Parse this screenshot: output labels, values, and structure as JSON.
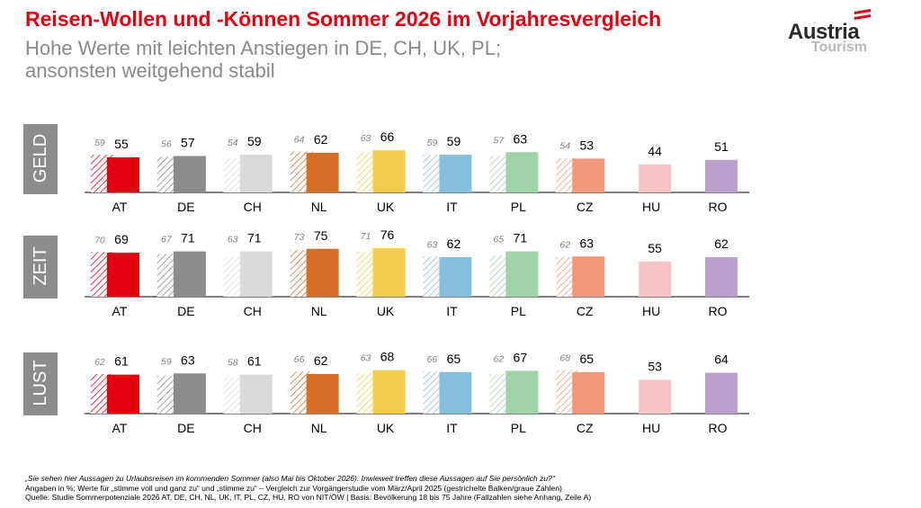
{
  "header": {
    "title": "Reisen-Wollen und -Können Sommer 2026 im Vorjahresvergleich",
    "subtitle_line1": "Hohe Werte mit leichten Anstiegen in DE, CH, UK, PL;",
    "subtitle_line2": "ansonsten weitgehend stabil"
  },
  "logo": {
    "main": "Austria",
    "sub": "Tourism"
  },
  "footer": {
    "question": "„Sie sehen hier Aussagen zu Urlaubsreisen im kommenden Sommer (also Mai bis Oktober 2026). Inwieweit treffen diese Aussagen auf Sie persönlich zu?“",
    "note": "Angaben in %; Werte für „stimme voll und ganz zu“ und „stimme zu“ – Vergleich zur Vorgängerstudie vom März/April 2025 (gestrichelte Balken/graue Zahlen)",
    "source": "Quelle: Studie Sommerpotenziale 2026 AT, DE, CH, NL, UK, IT, PL, CZ, HU, RO von NIT/ÖW | Basis: Bevölkerung 18 bis 75 Jahre (Fallzahlen siehe Anhang, Zeile A)"
  },
  "colors": {
    "AT": "#e3000f",
    "DE": "#8c8c8c",
    "CH": "#d9d9d9",
    "NL": "#d46f2a",
    "UK": "#f5cc4a",
    "IT": "#86bfdc",
    "PL": "#9fd2a8",
    "CZ": "#f2977a",
    "HU": "#f7c5c5",
    "RO": "#b9a0cf",
    "panel_label_bg": "#8c8c8c",
    "axis": "#000000",
    "prev_label": "#808080"
  },
  "chart_data": {
    "type": "bar",
    "categories": [
      "AT",
      "DE",
      "CH",
      "NL",
      "UK",
      "IT",
      "PL",
      "CZ",
      "HU",
      "RO"
    ],
    "panels": [
      {
        "label": "GELD",
        "series": [
          {
            "values": [
              55,
              57,
              59,
              62,
              66,
              59,
              63,
              53,
              44,
              51
            ]
          },
          {
            "values": [
              59,
              56,
              54,
              64,
              63,
              59,
              57,
              54,
              null,
              null
            ]
          }
        ]
      },
      {
        "label": "ZEIT",
        "series": [
          {
            "values": [
              69,
              71,
              71,
              75,
              76,
              62,
              71,
              63,
              55,
              62
            ]
          },
          {
            "values": [
              70,
              67,
              63,
              73,
              71,
              63,
              65,
              62,
              null,
              null
            ]
          }
        ]
      },
      {
        "label": "LUST",
        "series": [
          {
            "values": [
              61,
              63,
              61,
              62,
              68,
              65,
              67,
              65,
              53,
              64
            ]
          },
          {
            "values": [
              62,
              59,
              58,
              66,
              63,
              66,
              62,
              68,
              null,
              null
            ]
          }
        ]
      }
    ],
    "ylim": [
      0,
      100
    ]
  }
}
